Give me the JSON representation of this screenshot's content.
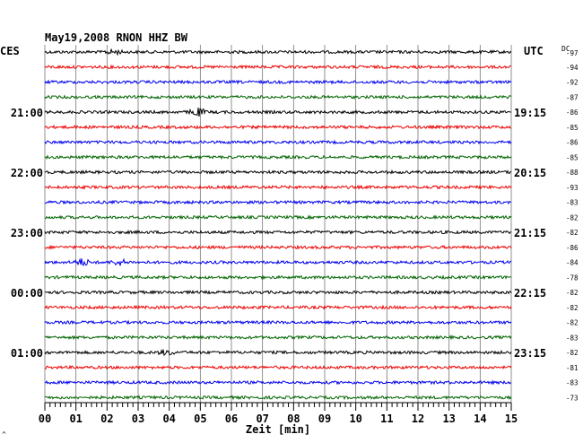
{
  "chart_data": {
    "type": "line",
    "title": "May19,2008   RNON HHZ BW",
    "left_axis_header": "CES",
    "right_axis_header": "UTC",
    "dc_header": "DC",
    "xlabel": "Zeit [min]",
    "xlim": [
      0,
      15
    ],
    "x_ticks": [
      "00",
      "01",
      "02",
      "03",
      "04",
      "05",
      "06",
      "07",
      "08",
      "09",
      "10",
      "11",
      "12",
      "13",
      "14",
      "15"
    ],
    "grid": true,
    "trace_colors": [
      "#000000",
      "#ee0000",
      "#0000ee",
      "#006400"
    ],
    "hour_labels_left": [
      {
        "row": 4,
        "text": "21:00"
      },
      {
        "row": 8,
        "text": "22:00"
      },
      {
        "row": 12,
        "text": "23:00"
      },
      {
        "row": 16,
        "text": "00:00"
      },
      {
        "row": 20,
        "text": "01:00"
      }
    ],
    "hour_labels_right": [
      {
        "row": 4,
        "text": "19:15"
      },
      {
        "row": 8,
        "text": "20:15"
      },
      {
        "row": 12,
        "text": "21:15"
      },
      {
        "row": 16,
        "text": "22:15"
      },
      {
        "row": 20,
        "text": "23:15"
      }
    ],
    "dc_offsets": [
      "-97",
      "-94",
      "-92",
      "-87",
      "-86",
      "-85",
      "-86",
      "-85",
      "-88",
      "-93",
      "-83",
      "-82",
      "-82",
      "-86",
      "-84",
      "-78",
      "-82",
      "-82",
      "-82",
      "-83",
      "-82",
      "-81",
      "-83",
      "-73"
    ],
    "bursts": [
      {
        "row": 0,
        "x": 2.2,
        "amp": 1.5
      },
      {
        "row": 4,
        "x": 4.9,
        "amp": 2.6
      },
      {
        "row": 14,
        "x": 1.2,
        "amp": 2.2
      },
      {
        "row": 14,
        "x": 2.4,
        "amp": 1.8
      },
      {
        "row": 20,
        "x": 3.9,
        "amp": 1.5
      }
    ],
    "footer_mark": "^"
  }
}
